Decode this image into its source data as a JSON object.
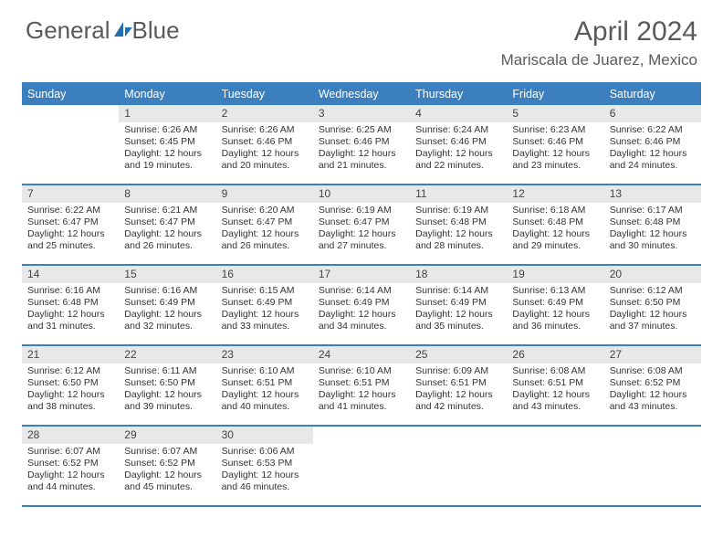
{
  "logo": {
    "text1": "General",
    "text2": "Blue",
    "icon_color": "#1f6fb2"
  },
  "header": {
    "title": "April 2024",
    "location": "Mariscala de Juarez, Mexico"
  },
  "colors": {
    "header_bg": "#3b7fbf",
    "header_text": "#ffffff",
    "row_border": "#3b7fbf",
    "daynum_bg": "#e8e8e8",
    "body_text": "#333333",
    "title_text": "#5a5a5a"
  },
  "weekdays": [
    "Sunday",
    "Monday",
    "Tuesday",
    "Wednesday",
    "Thursday",
    "Friday",
    "Saturday"
  ],
  "weeks": [
    [
      {
        "n": "",
        "sunrise": "",
        "sunset": "",
        "daylight": ""
      },
      {
        "n": "1",
        "sunrise": "Sunrise: 6:26 AM",
        "sunset": "Sunset: 6:45 PM",
        "daylight": "Daylight: 12 hours and 19 minutes."
      },
      {
        "n": "2",
        "sunrise": "Sunrise: 6:26 AM",
        "sunset": "Sunset: 6:46 PM",
        "daylight": "Daylight: 12 hours and 20 minutes."
      },
      {
        "n": "3",
        "sunrise": "Sunrise: 6:25 AM",
        "sunset": "Sunset: 6:46 PM",
        "daylight": "Daylight: 12 hours and 21 minutes."
      },
      {
        "n": "4",
        "sunrise": "Sunrise: 6:24 AM",
        "sunset": "Sunset: 6:46 PM",
        "daylight": "Daylight: 12 hours and 22 minutes."
      },
      {
        "n": "5",
        "sunrise": "Sunrise: 6:23 AM",
        "sunset": "Sunset: 6:46 PM",
        "daylight": "Daylight: 12 hours and 23 minutes."
      },
      {
        "n": "6",
        "sunrise": "Sunrise: 6:22 AM",
        "sunset": "Sunset: 6:46 PM",
        "daylight": "Daylight: 12 hours and 24 minutes."
      }
    ],
    [
      {
        "n": "7",
        "sunrise": "Sunrise: 6:22 AM",
        "sunset": "Sunset: 6:47 PM",
        "daylight": "Daylight: 12 hours and 25 minutes."
      },
      {
        "n": "8",
        "sunrise": "Sunrise: 6:21 AM",
        "sunset": "Sunset: 6:47 PM",
        "daylight": "Daylight: 12 hours and 26 minutes."
      },
      {
        "n": "9",
        "sunrise": "Sunrise: 6:20 AM",
        "sunset": "Sunset: 6:47 PM",
        "daylight": "Daylight: 12 hours and 26 minutes."
      },
      {
        "n": "10",
        "sunrise": "Sunrise: 6:19 AM",
        "sunset": "Sunset: 6:47 PM",
        "daylight": "Daylight: 12 hours and 27 minutes."
      },
      {
        "n": "11",
        "sunrise": "Sunrise: 6:19 AM",
        "sunset": "Sunset: 6:48 PM",
        "daylight": "Daylight: 12 hours and 28 minutes."
      },
      {
        "n": "12",
        "sunrise": "Sunrise: 6:18 AM",
        "sunset": "Sunset: 6:48 PM",
        "daylight": "Daylight: 12 hours and 29 minutes."
      },
      {
        "n": "13",
        "sunrise": "Sunrise: 6:17 AM",
        "sunset": "Sunset: 6:48 PM",
        "daylight": "Daylight: 12 hours and 30 minutes."
      }
    ],
    [
      {
        "n": "14",
        "sunrise": "Sunrise: 6:16 AM",
        "sunset": "Sunset: 6:48 PM",
        "daylight": "Daylight: 12 hours and 31 minutes."
      },
      {
        "n": "15",
        "sunrise": "Sunrise: 6:16 AM",
        "sunset": "Sunset: 6:49 PM",
        "daylight": "Daylight: 12 hours and 32 minutes."
      },
      {
        "n": "16",
        "sunrise": "Sunrise: 6:15 AM",
        "sunset": "Sunset: 6:49 PM",
        "daylight": "Daylight: 12 hours and 33 minutes."
      },
      {
        "n": "17",
        "sunrise": "Sunrise: 6:14 AM",
        "sunset": "Sunset: 6:49 PM",
        "daylight": "Daylight: 12 hours and 34 minutes."
      },
      {
        "n": "18",
        "sunrise": "Sunrise: 6:14 AM",
        "sunset": "Sunset: 6:49 PM",
        "daylight": "Daylight: 12 hours and 35 minutes."
      },
      {
        "n": "19",
        "sunrise": "Sunrise: 6:13 AM",
        "sunset": "Sunset: 6:49 PM",
        "daylight": "Daylight: 12 hours and 36 minutes."
      },
      {
        "n": "20",
        "sunrise": "Sunrise: 6:12 AM",
        "sunset": "Sunset: 6:50 PM",
        "daylight": "Daylight: 12 hours and 37 minutes."
      }
    ],
    [
      {
        "n": "21",
        "sunrise": "Sunrise: 6:12 AM",
        "sunset": "Sunset: 6:50 PM",
        "daylight": "Daylight: 12 hours and 38 minutes."
      },
      {
        "n": "22",
        "sunrise": "Sunrise: 6:11 AM",
        "sunset": "Sunset: 6:50 PM",
        "daylight": "Daylight: 12 hours and 39 minutes."
      },
      {
        "n": "23",
        "sunrise": "Sunrise: 6:10 AM",
        "sunset": "Sunset: 6:51 PM",
        "daylight": "Daylight: 12 hours and 40 minutes."
      },
      {
        "n": "24",
        "sunrise": "Sunrise: 6:10 AM",
        "sunset": "Sunset: 6:51 PM",
        "daylight": "Daylight: 12 hours and 41 minutes."
      },
      {
        "n": "25",
        "sunrise": "Sunrise: 6:09 AM",
        "sunset": "Sunset: 6:51 PM",
        "daylight": "Daylight: 12 hours and 42 minutes."
      },
      {
        "n": "26",
        "sunrise": "Sunrise: 6:08 AM",
        "sunset": "Sunset: 6:51 PM",
        "daylight": "Daylight: 12 hours and 43 minutes."
      },
      {
        "n": "27",
        "sunrise": "Sunrise: 6:08 AM",
        "sunset": "Sunset: 6:52 PM",
        "daylight": "Daylight: 12 hours and 43 minutes."
      }
    ],
    [
      {
        "n": "28",
        "sunrise": "Sunrise: 6:07 AM",
        "sunset": "Sunset: 6:52 PM",
        "daylight": "Daylight: 12 hours and 44 minutes."
      },
      {
        "n": "29",
        "sunrise": "Sunrise: 6:07 AM",
        "sunset": "Sunset: 6:52 PM",
        "daylight": "Daylight: 12 hours and 45 minutes."
      },
      {
        "n": "30",
        "sunrise": "Sunrise: 6:06 AM",
        "sunset": "Sunset: 6:53 PM",
        "daylight": "Daylight: 12 hours and 46 minutes."
      },
      {
        "n": "",
        "sunrise": "",
        "sunset": "",
        "daylight": ""
      },
      {
        "n": "",
        "sunrise": "",
        "sunset": "",
        "daylight": ""
      },
      {
        "n": "",
        "sunrise": "",
        "sunset": "",
        "daylight": ""
      },
      {
        "n": "",
        "sunrise": "",
        "sunset": "",
        "daylight": ""
      }
    ]
  ]
}
